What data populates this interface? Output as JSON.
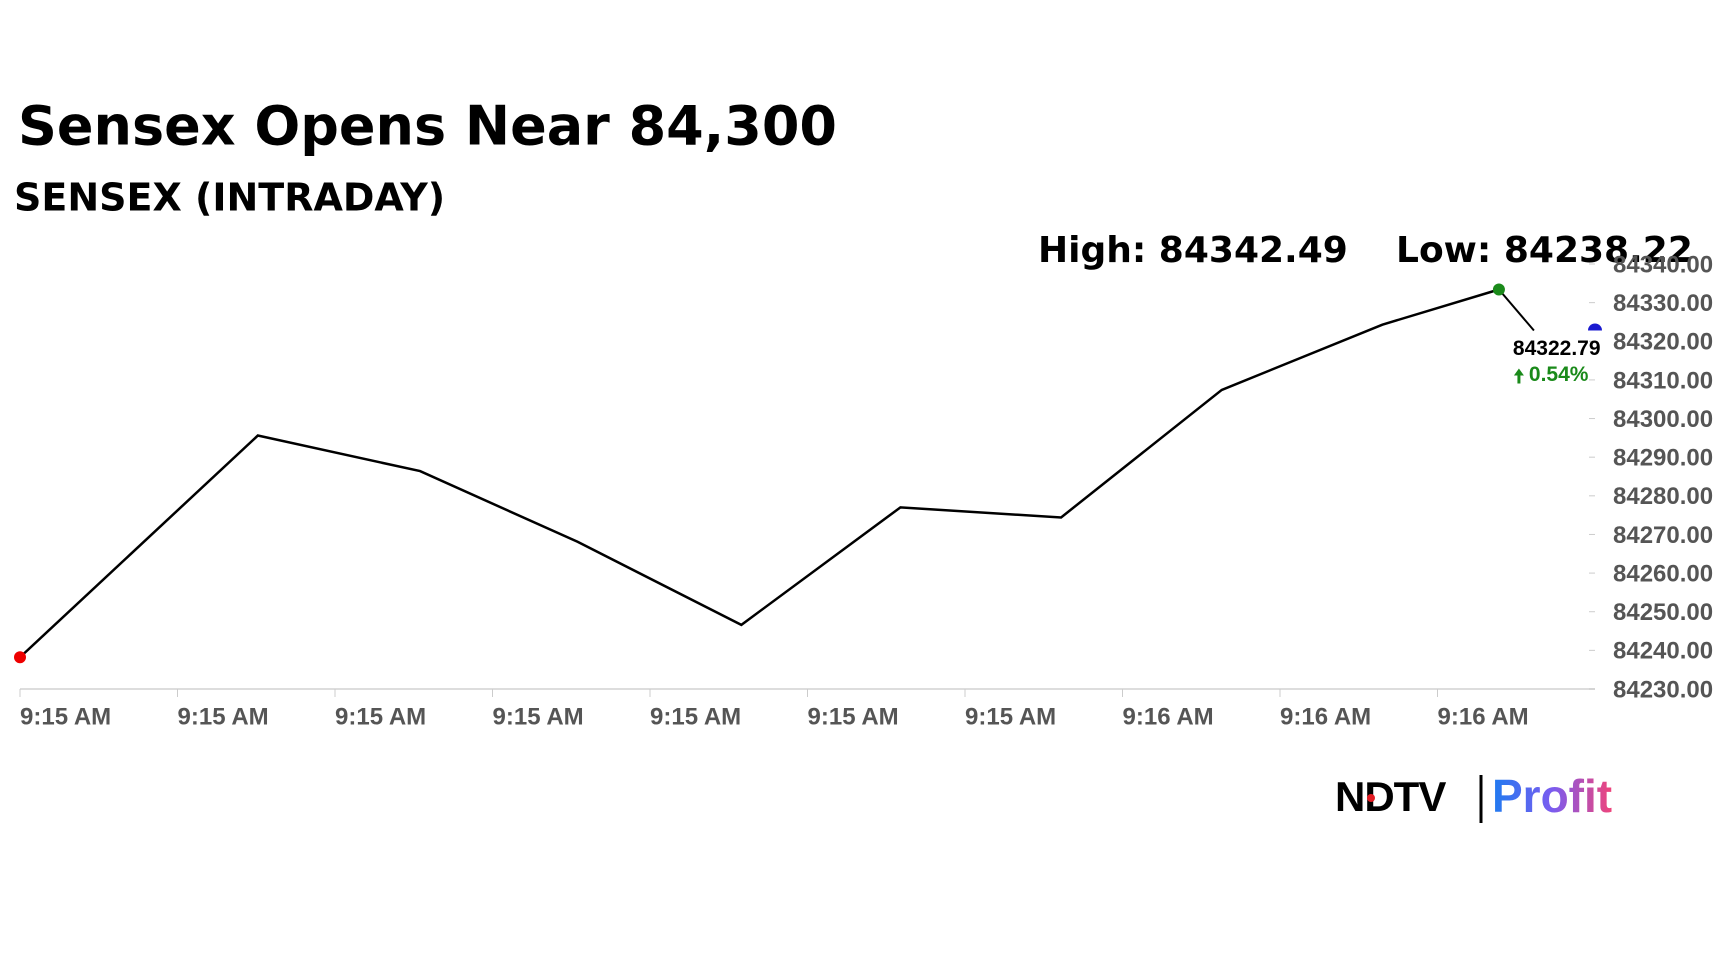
{
  "chart_data": {
    "type": "line",
    "title": "Sensex Opens Near 84,300",
    "subtitle": "SENSEX (INTRADAY)",
    "annotations": [
      "High: 84342.49",
      "Low: 84238.22"
    ],
    "x": [
      0,
      1.51,
      2.54,
      3.54,
      4.58,
      5.59,
      6.61,
      7.63,
      8.65,
      9.39
    ],
    "series": [
      {
        "name": "SENSEX",
        "color": "#000000",
        "values": [
          84238.22,
          84295.6,
          84286.4,
          84268.1,
          84246.6,
          84277.0,
          84274.4,
          84307.4,
          84324.3,
          84333.4
        ]
      }
    ],
    "current": {
      "x": 10,
      "value": 84322.79,
      "change": "0.54%"
    },
    "xlim": [
      0,
      10
    ],
    "xticks": [
      {
        "value": 0,
        "label": "9:15 AM"
      },
      {
        "value": 1,
        "label": "9:15 AM"
      },
      {
        "value": 2,
        "label": "9:15 AM"
      },
      {
        "value": 3,
        "label": "9:15 AM"
      },
      {
        "value": 4,
        "label": "9:15 AM"
      },
      {
        "value": 5,
        "label": "9:15 AM"
      },
      {
        "value": 6,
        "label": "9:15 AM"
      },
      {
        "value": 7,
        "label": "9:16 AM"
      },
      {
        "value": 8,
        "label": "9:16 AM"
      },
      {
        "value": 9,
        "label": "9:16 AM"
      }
    ],
    "ylim": [
      84230,
      84340
    ],
    "yticks": [
      {
        "value": 84230,
        "label": "84230.00"
      },
      {
        "value": 84240,
        "label": "84240.00"
      },
      {
        "value": 84250,
        "label": "84250.00"
      },
      {
        "value": 84260,
        "label": "84260.00"
      },
      {
        "value": 84270,
        "label": "84270.00"
      },
      {
        "value": 84280,
        "label": "84280.00"
      },
      {
        "value": 84290,
        "label": "84290.00"
      },
      {
        "value": 84300,
        "label": "84300.00"
      },
      {
        "value": 84310,
        "label": "84310.00"
      },
      {
        "value": 84320,
        "label": "84320.00"
      },
      {
        "value": 84330,
        "label": "84330.00"
      },
      {
        "value": 84340,
        "label": "84340.00"
      }
    ],
    "logo": [
      "NDTV",
      "Profit"
    ]
  }
}
